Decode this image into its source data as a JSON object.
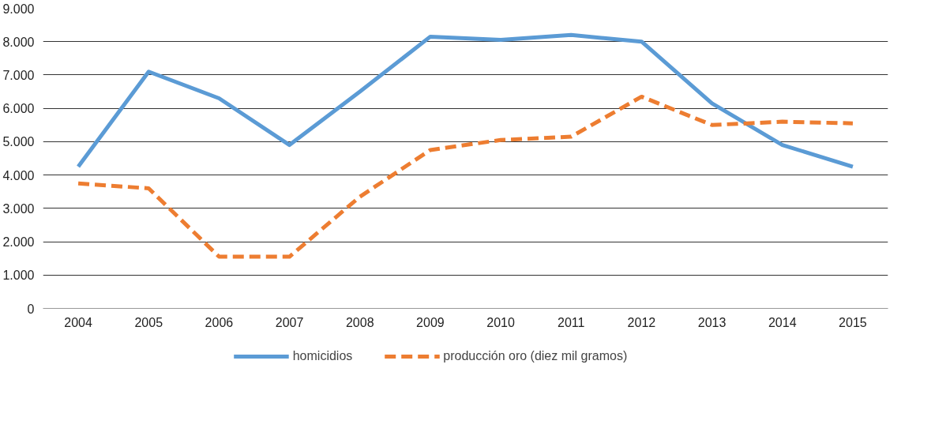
{
  "chart_data": {
    "type": "line",
    "categories": [
      "2004",
      "2005",
      "2006",
      "2007",
      "2008",
      "2009",
      "2010",
      "2011",
      "2012",
      "2013",
      "2014",
      "2015"
    ],
    "series": [
      {
        "name": "homicidios",
        "color": "#5b9bd5",
        "line_style": "solid",
        "values": [
          4250,
          7100,
          6300,
          4900,
          6500,
          8150,
          8050,
          8200,
          8000,
          6150,
          4900,
          4250
        ]
      },
      {
        "name": "producción oro (diez mil gramos)",
        "color": "#ed7d31",
        "line_style": "dashed",
        "values": [
          3750,
          3600,
          1550,
          1550,
          3350,
          4750,
          5050,
          5150,
          6350,
          5500,
          5600,
          5550
        ]
      }
    ],
    "ylim": [
      0,
      9000
    ],
    "yticks": [
      0,
      {
        "value": 1000,
        "label": "1.000"
      },
      {
        "value": 2000,
        "label": "2.000"
      },
      {
        "value": 3000,
        "label": "3.000"
      },
      {
        "value": 4000,
        "label": "4.000"
      },
      {
        "value": 5000,
        "label": "5.000"
      },
      {
        "value": 6000,
        "label": "6.000"
      },
      {
        "value": 7000,
        "label": "7.000"
      },
      {
        "value": 8000,
        "label": "8.000"
      },
      {
        "value": 9000,
        "label": "9.000"
      }
    ],
    "grid": "y",
    "legend": "bottom",
    "marker": "none"
  }
}
